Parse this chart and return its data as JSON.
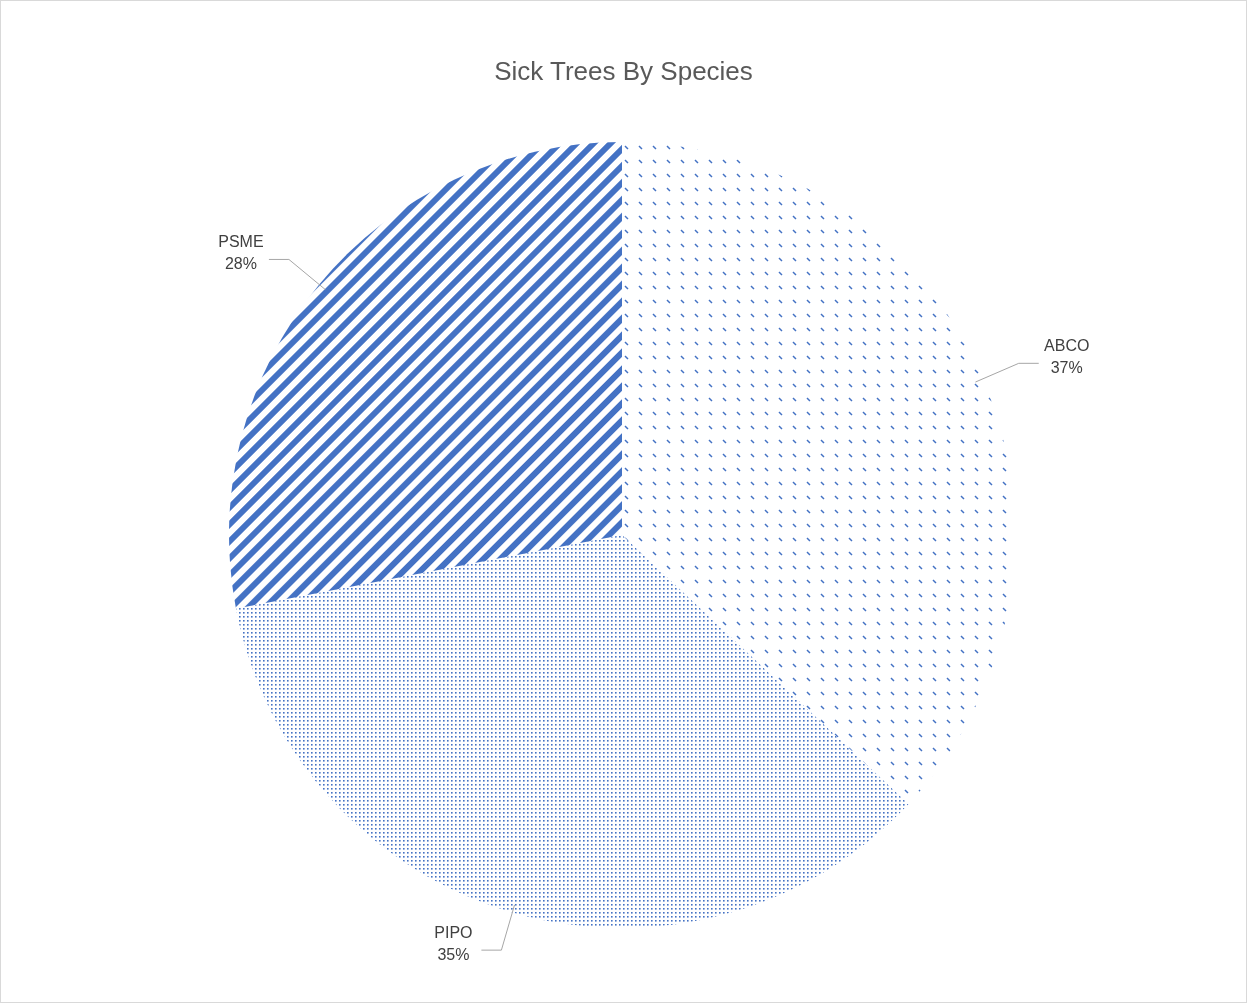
{
  "chart_data": {
    "type": "pie",
    "title": "Sick Trees By Species",
    "categories": [
      "ABCO",
      "PIPO",
      "PSME"
    ],
    "values": [
      37,
      35,
      28
    ],
    "colors": [
      "#4472c4",
      "#4472c4",
      "#4472c4"
    ],
    "value_labels": [
      "37%",
      "35%",
      "28%"
    ]
  }
}
